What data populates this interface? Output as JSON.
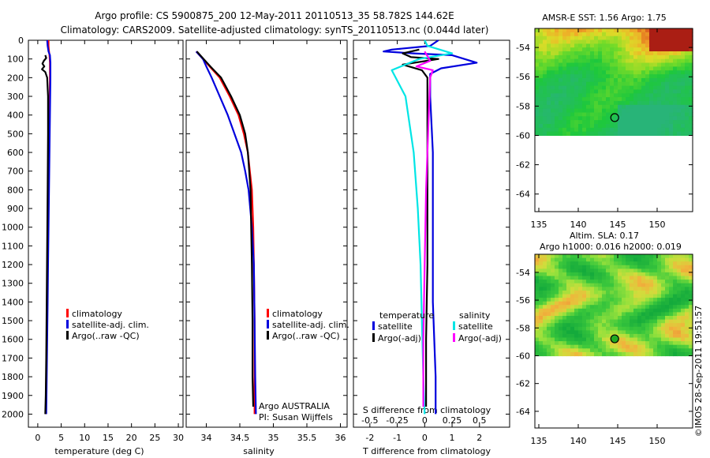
{
  "title_line1": "Argo profile: CS 5900875_200 12-May-2011 20110513_35 58.782S 144.62E",
  "title_line2": "Climatology: CARS2009. Satellite-adjusted climatology: synTS_20110513.nc (0.044d later)",
  "credit": "©IMOS 28-Sep-2011 19:51:57",
  "chart_data": [
    {
      "type": "line",
      "panel": "temperature",
      "xlabel": "temperature (deg C)",
      "ylabel": "",
      "xlim": [
        -2,
        31
      ],
      "ylim": [
        2070,
        0
      ],
      "xticks": [
        "0",
        "5",
        "10",
        "15",
        "20",
        "25",
        "30"
      ],
      "xtick_values": [
        0,
        5,
        10,
        15,
        20,
        25,
        30
      ],
      "yticks": [
        "0",
        "100",
        "200",
        "300",
        "400",
        "500",
        "600",
        "700",
        "800",
        "900",
        "1000",
        "1100",
        "1200",
        "1300",
        "1400",
        "1500",
        "1600",
        "1700",
        "1800",
        "1900",
        "2000"
      ],
      "ytick_values": [
        0,
        100,
        200,
        300,
        400,
        500,
        600,
        700,
        800,
        900,
        1000,
        1100,
        1200,
        1300,
        1400,
        1500,
        1600,
        1700,
        1800,
        1900,
        2000
      ],
      "legend": [
        "climatology",
        "satellite-adj. clim.",
        "Argo(..raw -QC)"
      ],
      "legend_placement": "lower-middle",
      "series": [
        {
          "name": "climatology",
          "color": "#ff0000",
          "x": [
            2.3,
            2.3,
            2.4,
            2.5,
            2.6,
            2.6,
            2.5,
            2.4,
            2.3,
            2.2,
            2.1,
            2.0,
            1.9,
            1.8,
            1.7
          ],
          "y": [
            0,
            30,
            60,
            80,
            120,
            200,
            400,
            600,
            800,
            1000,
            1200,
            1400,
            1600,
            1800,
            2000
          ]
        },
        {
          "name": "satellite-adj. clim.",
          "color": "#0000dd",
          "x": [
            2.0,
            2.1,
            2.3,
            2.6,
            2.7,
            2.7,
            2.6,
            2.5,
            2.4,
            2.3,
            2.2,
            2.1,
            2.0,
            1.9,
            1.8
          ],
          "y": [
            0,
            30,
            60,
            80,
            120,
            200,
            400,
            600,
            800,
            1000,
            1200,
            1400,
            1600,
            1800,
            2000
          ]
        },
        {
          "name": "Argo(..raw -QC)",
          "color": "#000000",
          "x": [
            1.6,
            1.8,
            1.3,
            1.0,
            1.4,
            0.9,
            1.6,
            2.0,
            2.2,
            2.2,
            2.1,
            2.0,
            1.9,
            1.8,
            1.7,
            1.6
          ],
          "y": [
            80,
            95,
            110,
            125,
            140,
            155,
            170,
            200,
            300,
            500,
            800,
            1100,
            1400,
            1700,
            1900,
            2000
          ]
        }
      ]
    },
    {
      "type": "line",
      "panel": "salinity",
      "xlabel": "salinity",
      "ylabel": "",
      "xlim": [
        33.7,
        36.1
      ],
      "ylim": [
        2070,
        0
      ],
      "xticks": [
        "34",
        "34.5",
        "35",
        "35.5",
        "36"
      ],
      "xtick_values": [
        34,
        34.5,
        35,
        35.5,
        36
      ],
      "legend": [
        "climatology",
        "satellite-adj. clim.",
        "Argo(..raw -QC)"
      ],
      "legend_placement": "lower-right",
      "annotations": [
        "Argo AUSTRALIA",
        "PI: Susan Wijffels"
      ],
      "series": [
        {
          "name": "climatology",
          "color": "#ff0000",
          "x": [
            33.85,
            33.95,
            34.05,
            34.2,
            34.35,
            34.48,
            34.56,
            34.62,
            34.65,
            34.68,
            34.7,
            34.71,
            34.72,
            34.72,
            34.72
          ],
          "y": [
            60,
            100,
            140,
            200,
            300,
            400,
            500,
            600,
            700,
            800,
            1000,
            1200,
            1500,
            1800,
            2000
          ]
        },
        {
          "name": "satellite-adj. clim.",
          "color": "#0000dd",
          "x": [
            33.85,
            33.95,
            34.0,
            34.08,
            34.2,
            34.32,
            34.42,
            34.52,
            34.58,
            34.63,
            34.68,
            34.71,
            34.72,
            34.73,
            34.74
          ],
          "y": [
            60,
            100,
            140,
            200,
            300,
            400,
            500,
            600,
            700,
            800,
            1000,
            1200,
            1500,
            1800,
            2000
          ]
        },
        {
          "name": "Argo(..raw -QC)",
          "color": "#000000",
          "x": [
            33.86,
            33.96,
            34.06,
            34.22,
            34.37,
            34.5,
            34.58,
            34.62,
            34.64,
            34.66,
            34.67,
            34.68,
            34.69,
            34.69,
            34.7
          ],
          "y": [
            60,
            100,
            140,
            200,
            300,
            400,
            500,
            600,
            700,
            800,
            1000,
            1200,
            1500,
            1800,
            1960
          ]
        }
      ]
    },
    {
      "type": "line",
      "panel": "difference",
      "xlabel": "T difference from climatology",
      "xlabel_top": "S difference from climatology",
      "xlim": [
        -2.6,
        3.1
      ],
      "ylim": [
        2070,
        0
      ],
      "xticks": [
        "-2",
        "-1",
        "0",
        "1",
        "2"
      ],
      "xtick_values": [
        -2,
        -1,
        0,
        1,
        2
      ],
      "xticks_top": [
        "-0.5",
        "-0.25",
        "0",
        "0.25",
        "0.5"
      ],
      "xtick_values_top": [
        -0.5,
        -0.25,
        0,
        0.25,
        0.5
      ],
      "legend_headers": [
        "temperature",
        "salinity"
      ],
      "legend": [
        "satellite",
        "Argo(-adj)",
        "satellite",
        "Argo(-adj)"
      ],
      "legend_placement": "lower-center",
      "series": [
        {
          "name": "satellite",
          "group": "temperature",
          "color": "#0000dd",
          "x": [
            0.5,
            0.2,
            -1.2,
            -1.5,
            -0.4,
            1.0,
            1.9,
            0.6,
            0.2,
            0.2,
            0.3,
            0.3,
            0.3,
            0.4,
            0.4
          ],
          "y": [
            0,
            30,
            50,
            60,
            70,
            80,
            120,
            150,
            180,
            300,
            600,
            1000,
            1400,
            1800,
            2000
          ]
        },
        {
          "name": "Argo(-adj)",
          "group": "temperature",
          "color": "#000000",
          "x": [
            -0.2,
            -0.8,
            -0.5,
            0.5,
            -0.8,
            -0.1,
            0.1,
            0.1,
            0.1,
            0.1,
            0.05,
            0.05
          ],
          "y": [
            50,
            70,
            90,
            100,
            130,
            160,
            200,
            400,
            800,
            1200,
            1600,
            1960
          ]
        },
        {
          "name": "satellite",
          "group": "salinity",
          "color": "#00e5e5",
          "x": [
            0.0,
            0.1,
            1.0,
            -0.2,
            -1.2,
            -0.7,
            -0.4,
            -0.25,
            -0.15,
            -0.1,
            -0.05,
            0.0
          ],
          "y": [
            0,
            30,
            70,
            100,
            160,
            300,
            600,
            900,
            1200,
            1500,
            1800,
            2000
          ]
        },
        {
          "name": "Argo(-adj)",
          "group": "salinity",
          "color": "#ff00ff",
          "x": [
            0.0,
            0.2,
            -0.3,
            0.3,
            0.2,
            0.15,
            0.05,
            0.0,
            -0.05,
            -0.05
          ],
          "y": [
            60,
            110,
            140,
            160,
            200,
            400,
            800,
            1200,
            1600,
            1960
          ]
        }
      ]
    },
    {
      "type": "heatmap",
      "panel": "sst-map",
      "title": "AMSR-E SST: 1.56 Argo: 1.75",
      "xlim": [
        134.5,
        154.5
      ],
      "ylim": [
        -65.2,
        -52.7
      ],
      "xticks": [
        "135",
        "140",
        "145",
        "150"
      ],
      "xtick_values": [
        135,
        140,
        145,
        150
      ],
      "yticks": [
        "-54",
        "-56",
        "-58",
        "-60",
        "-62",
        "-64"
      ],
      "ytick_values": [
        -54,
        -56,
        -58,
        -60,
        -62,
        -64
      ],
      "data_lat_min": -60,
      "argo_position": {
        "lon": 144.62,
        "lat": -58.782
      },
      "marker_fill": "none"
    },
    {
      "type": "heatmap",
      "panel": "sla-map",
      "title": "Altim. SLA: 0.17",
      "subtitle": "Argo h1000: 0.016 h2000: 0.019",
      "xlim": [
        134.5,
        154.5
      ],
      "ylim": [
        -65.2,
        -52.7
      ],
      "xticks": [
        "135",
        "140",
        "145",
        "150"
      ],
      "xtick_values": [
        135,
        140,
        145,
        150
      ],
      "yticks": [
        "-54",
        "-56",
        "-58",
        "-60",
        "-62",
        "-64"
      ],
      "ytick_values": [
        -54,
        -56,
        -58,
        -60,
        -62,
        -64
      ],
      "data_lat_min": -60,
      "argo_position": {
        "lon": 144.62,
        "lat": -58.782
      },
      "marker_fill": "#22aa22"
    }
  ]
}
